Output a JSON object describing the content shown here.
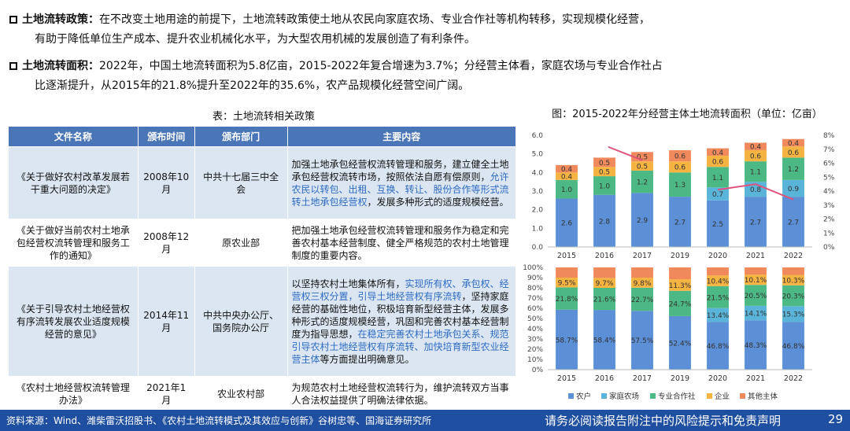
{
  "bullets": [
    {
      "title": "土地流转政策：",
      "line1": "在不改变土地用途的前提下，土地流转政策使土地从农民向家庭农场、专业合作社等机构转移，实现规模化经营，",
      "line2": "有助于降低单位生产成本、提升农业机械化水平，为大型农用机械的发展创造了有利条件。"
    },
    {
      "title": "土地流转面积：",
      "line1": "2022年，中国土地流转面积为5.8亿亩，2015-2022年复合增速为3.7%；分经营主体看，家庭农场与专业合作社占",
      "line2": "比逐渐提升，从2015年的21.8%提升至2022年的35.6%，农产品规模化经营空间广阔。"
    }
  ],
  "table": {
    "caption": "表：土地流转相关政策",
    "headers": [
      "文件名称",
      "颁布时间",
      "颁布部门",
      "主要内容"
    ],
    "rows": [
      {
        "name": "《关于做好农村改革发展若干重大问题的决定》",
        "date": "2008年10月",
        "dept": "中共十七届三中全会",
        "c1": "加强土地承包经营权流转管理和服务，建立健全土地承包经营权流转市场，按照依法自愿有偿原则，",
        "c2": "允许农民以转包、出租、互换、转让、股份合作等形式流转土地承包经营权",
        "c3": "，发展多种形式的适度规模经营。",
        "c4": "",
        "c5": ""
      },
      {
        "name": "《关于做好当前农村土地承包经营权流转管理和服务工作的通知》",
        "date": "2008年12月",
        "dept": "原农业部",
        "c1": "把加强土地承包经营权流转管理和服务作为稳定和完善农村基本经营制度、健全严格规范的农村土地管理制度的重要内容。",
        "c2": "",
        "c3": "",
        "c4": "",
        "c5": ""
      },
      {
        "name": "《关于引导农村土地经营权有序流转发展农业适度规模经营的意见》",
        "date": "2014年11月",
        "dept": "中共中央办公厅、国务院办公厅",
        "c1": "以坚持农村土地集体所有，",
        "c2": "实现所有权、承包权、经营权三权分置，引导土地经营权有序流转",
        "c3": "，坚持家庭经营的基础性地位，积极培育新型经营主体，发展多种形式的适度规模经营，巩固和完善农村基本经营制度为指导思想，",
        "c4": "在稳定完善农村土地承包关系、规范引导农村土地经营权有序流转、加快培育新型农业经营主体",
        "c5": "等方面提出明确意见。"
      },
      {
        "name": "《农村土地经营权流转管理办法》",
        "date": "2021年1月",
        "dept": "农业农村部",
        "c1": "为规范农村土地经营权流转行为，维护流转双方当事人合法权益提供了明确法律依据。",
        "c2": "",
        "c3": "",
        "c4": "",
        "c5": ""
      }
    ]
  },
  "chart_caption": "图：2015-2022年分经营主体土地流转面积（单位：亿亩）",
  "chart_data": [
    {
      "type": "bar",
      "stacked": true,
      "categories": [
        "2015",
        "2016",
        "2017",
        "2019",
        "2020",
        "2021",
        "2022"
      ],
      "ylim": [
        0,
        6.0
      ],
      "yticks": [
        "0.0",
        "1.0",
        "2.0",
        "3.0",
        "4.0",
        "5.0",
        "6.0"
      ],
      "y2lim": [
        0,
        8
      ],
      "y2ticks": [
        "0%",
        "1%",
        "2%",
        "3%",
        "4%",
        "5%",
        "6%",
        "7%",
        "8%"
      ],
      "series": [
        {
          "name": "农户",
          "color": "#5b8fd6",
          "values": [
            2.6,
            2.8,
            2.9,
            2.7,
            2.5,
            2.7,
            2.7
          ]
        },
        {
          "name": "家庭农场",
          "color": "#5ab4d9",
          "values": [
            0.0,
            0.0,
            0.0,
            0.0,
            0.7,
            0.8,
            0.9
          ]
        },
        {
          "name": "专业合作社",
          "color": "#4cb883",
          "values": [
            1.0,
            1.0,
            1.2,
            1.3,
            1.1,
            1.1,
            1.2
          ]
        },
        {
          "name": "企业",
          "color": "#f5b342",
          "values": [
            0.4,
            0.5,
            0.5,
            0.6,
            0.6,
            0.6,
            0.6
          ]
        },
        {
          "name": "其他主体",
          "color": "#f08a5d",
          "values": [
            0.4,
            0.5,
            0.5,
            0.6,
            0.4,
            0.4,
            0.4
          ]
        }
      ],
      "labels": {
        "农户": [
          "2.6",
          "2.8",
          "2.9",
          "2.7",
          "2.5",
          "2.7",
          "2.7"
        ],
        "家庭农场": [
          "",
          "",
          "",
          "",
          "0.7",
          "0.8",
          "0.9"
        ],
        "专业合作社": [
          "1.0",
          "1.0",
          "1.2",
          "1.3",
          "1.1",
          "1.1",
          "1.2"
        ],
        "企业": [
          "0.4",
          "0.5",
          "0.5",
          "0.6",
          "0.6",
          "0.6",
          "0.6"
        ],
        "其他主体": [
          "0.4",
          "0.5",
          "0.5",
          "0.6",
          "0.4",
          "0.4",
          "0.4"
        ]
      },
      "growth_line": {
        "color": "#e0527a",
        "points": [
          [
            2,
            7.0
          ],
          [
            2,
            6.1
          ],
          [
            3,
            4.3
          ],
          [
            4,
            4.1
          ],
          [
            5,
            4.5
          ],
          [
            6,
            3.4
          ]
        ],
        "note": "partial line segments visible"
      }
    },
    {
      "type": "bar",
      "stacked": true,
      "percent": true,
      "categories": [
        "2015",
        "2016",
        "2017",
        "2019",
        "2020",
        "2021",
        "2022"
      ],
      "ylim": [
        0,
        100
      ],
      "yticks": [
        "0%",
        "10%",
        "20%",
        "30%",
        "40%",
        "50%",
        "60%",
        "70%",
        "80%",
        "90%",
        "100%"
      ],
      "series": [
        {
          "name": "农户",
          "color": "#5b8fd6",
          "values": [
            58.7,
            58.4,
            57.5,
            52.4,
            46.8,
            48.3,
            46.8
          ]
        },
        {
          "name": "家庭农场",
          "color": "#5ab4d9",
          "values": [
            0,
            0,
            0,
            0,
            13.4,
            14.1,
            15.3
          ]
        },
        {
          "name": "专业合作社",
          "color": "#4cb883",
          "values": [
            21.8,
            21.6,
            22.7,
            24.7,
            21.5,
            20.5,
            20.3
          ]
        },
        {
          "name": "企业",
          "color": "#f5b342",
          "values": [
            9.5,
            9.7,
            9.8,
            11.3,
            10.4,
            10.1,
            10.3
          ]
        },
        {
          "name": "其他主体",
          "color": "#f08a5d",
          "values": [
            10.0,
            10.3,
            10.0,
            11.6,
            7.9,
            7.0,
            7.3
          ]
        }
      ],
      "labels": {
        "农户": [
          "58.7%",
          "58.4%",
          "57.5%",
          "52.4%",
          "46.8%",
          "48.3%",
          "46.8%"
        ],
        "家庭农场": [
          "",
          "",
          "",
          "",
          "13.4%",
          "14.1%",
          "15.3%"
        ],
        "专业合作社": [
          "21.8%",
          "21.6%",
          "22.7%",
          "24.7%",
          "21.5%",
          "20.5%",
          "20.3%"
        ],
        "企业": [
          "9.5%",
          "9.7%",
          "9.8%",
          "11.3%",
          "10.4%",
          "10.1%",
          "10.3%"
        ],
        "其他主体": [
          "",
          "",
          "",
          "",
          "",
          "",
          ""
        ]
      }
    }
  ],
  "legend": [
    "农户",
    "家庭农场",
    "专业合作社",
    "企业",
    "其他主体"
  ],
  "footer": {
    "source": "资料来源：Wind、潍柴雷沃招股书、《农村土地流转模式及其效应与创新》谷树忠等、国海证券研究所",
    "disclaimer": "请务必阅读报告附注中的风险提示和免责声明",
    "page": "29"
  }
}
